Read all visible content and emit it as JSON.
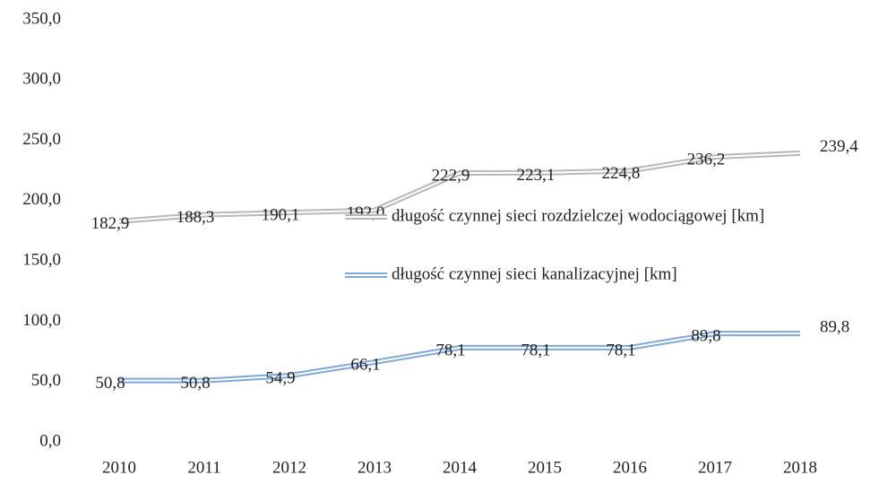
{
  "chart_data": {
    "type": "line",
    "x": [
      "2010",
      "2011",
      "2012",
      "2013",
      "2014",
      "2015",
      "2016",
      "2017",
      "2018"
    ],
    "series": [
      {
        "name": "długość czynnej sieci rozdzielczej wodociągowej [km]",
        "color": "#b8b8b8",
        "values": [
          182.9,
          188.3,
          190.1,
          192.0,
          222.9,
          223.1,
          224.8,
          236.2,
          239.4
        ],
        "value_labels": [
          "182,9",
          "188,3",
          "190,1",
          "192,0",
          "222,9",
          "223,1",
          "224,8",
          "236,2",
          "239,4"
        ]
      },
      {
        "name": "długość czynnej sieci kanalizacyjnej [km]",
        "color": "#7ea9da",
        "values": [
          50.8,
          50.8,
          54.9,
          66.1,
          78.1,
          78.1,
          78.1,
          89.8,
          89.8
        ],
        "value_labels": [
          "50,8",
          "50,8",
          "54,9",
          "66,1",
          "78,1",
          "78,1",
          "78,1",
          "89,8",
          "89,8"
        ]
      }
    ],
    "ylim": [
      0,
      350
    ],
    "yticks": [
      {
        "value": 0,
        "label": "0,0"
      },
      {
        "value": 50,
        "label": "50,0"
      },
      {
        "value": 100,
        "label": "100,0"
      },
      {
        "value": 150,
        "label": "150,0"
      },
      {
        "value": 200,
        "label": "200,0"
      },
      {
        "value": 250,
        "label": "250,0"
      },
      {
        "value": 300,
        "label": "300,0"
      },
      {
        "value": 350,
        "label": "350,0"
      }
    ],
    "grid": false
  }
}
